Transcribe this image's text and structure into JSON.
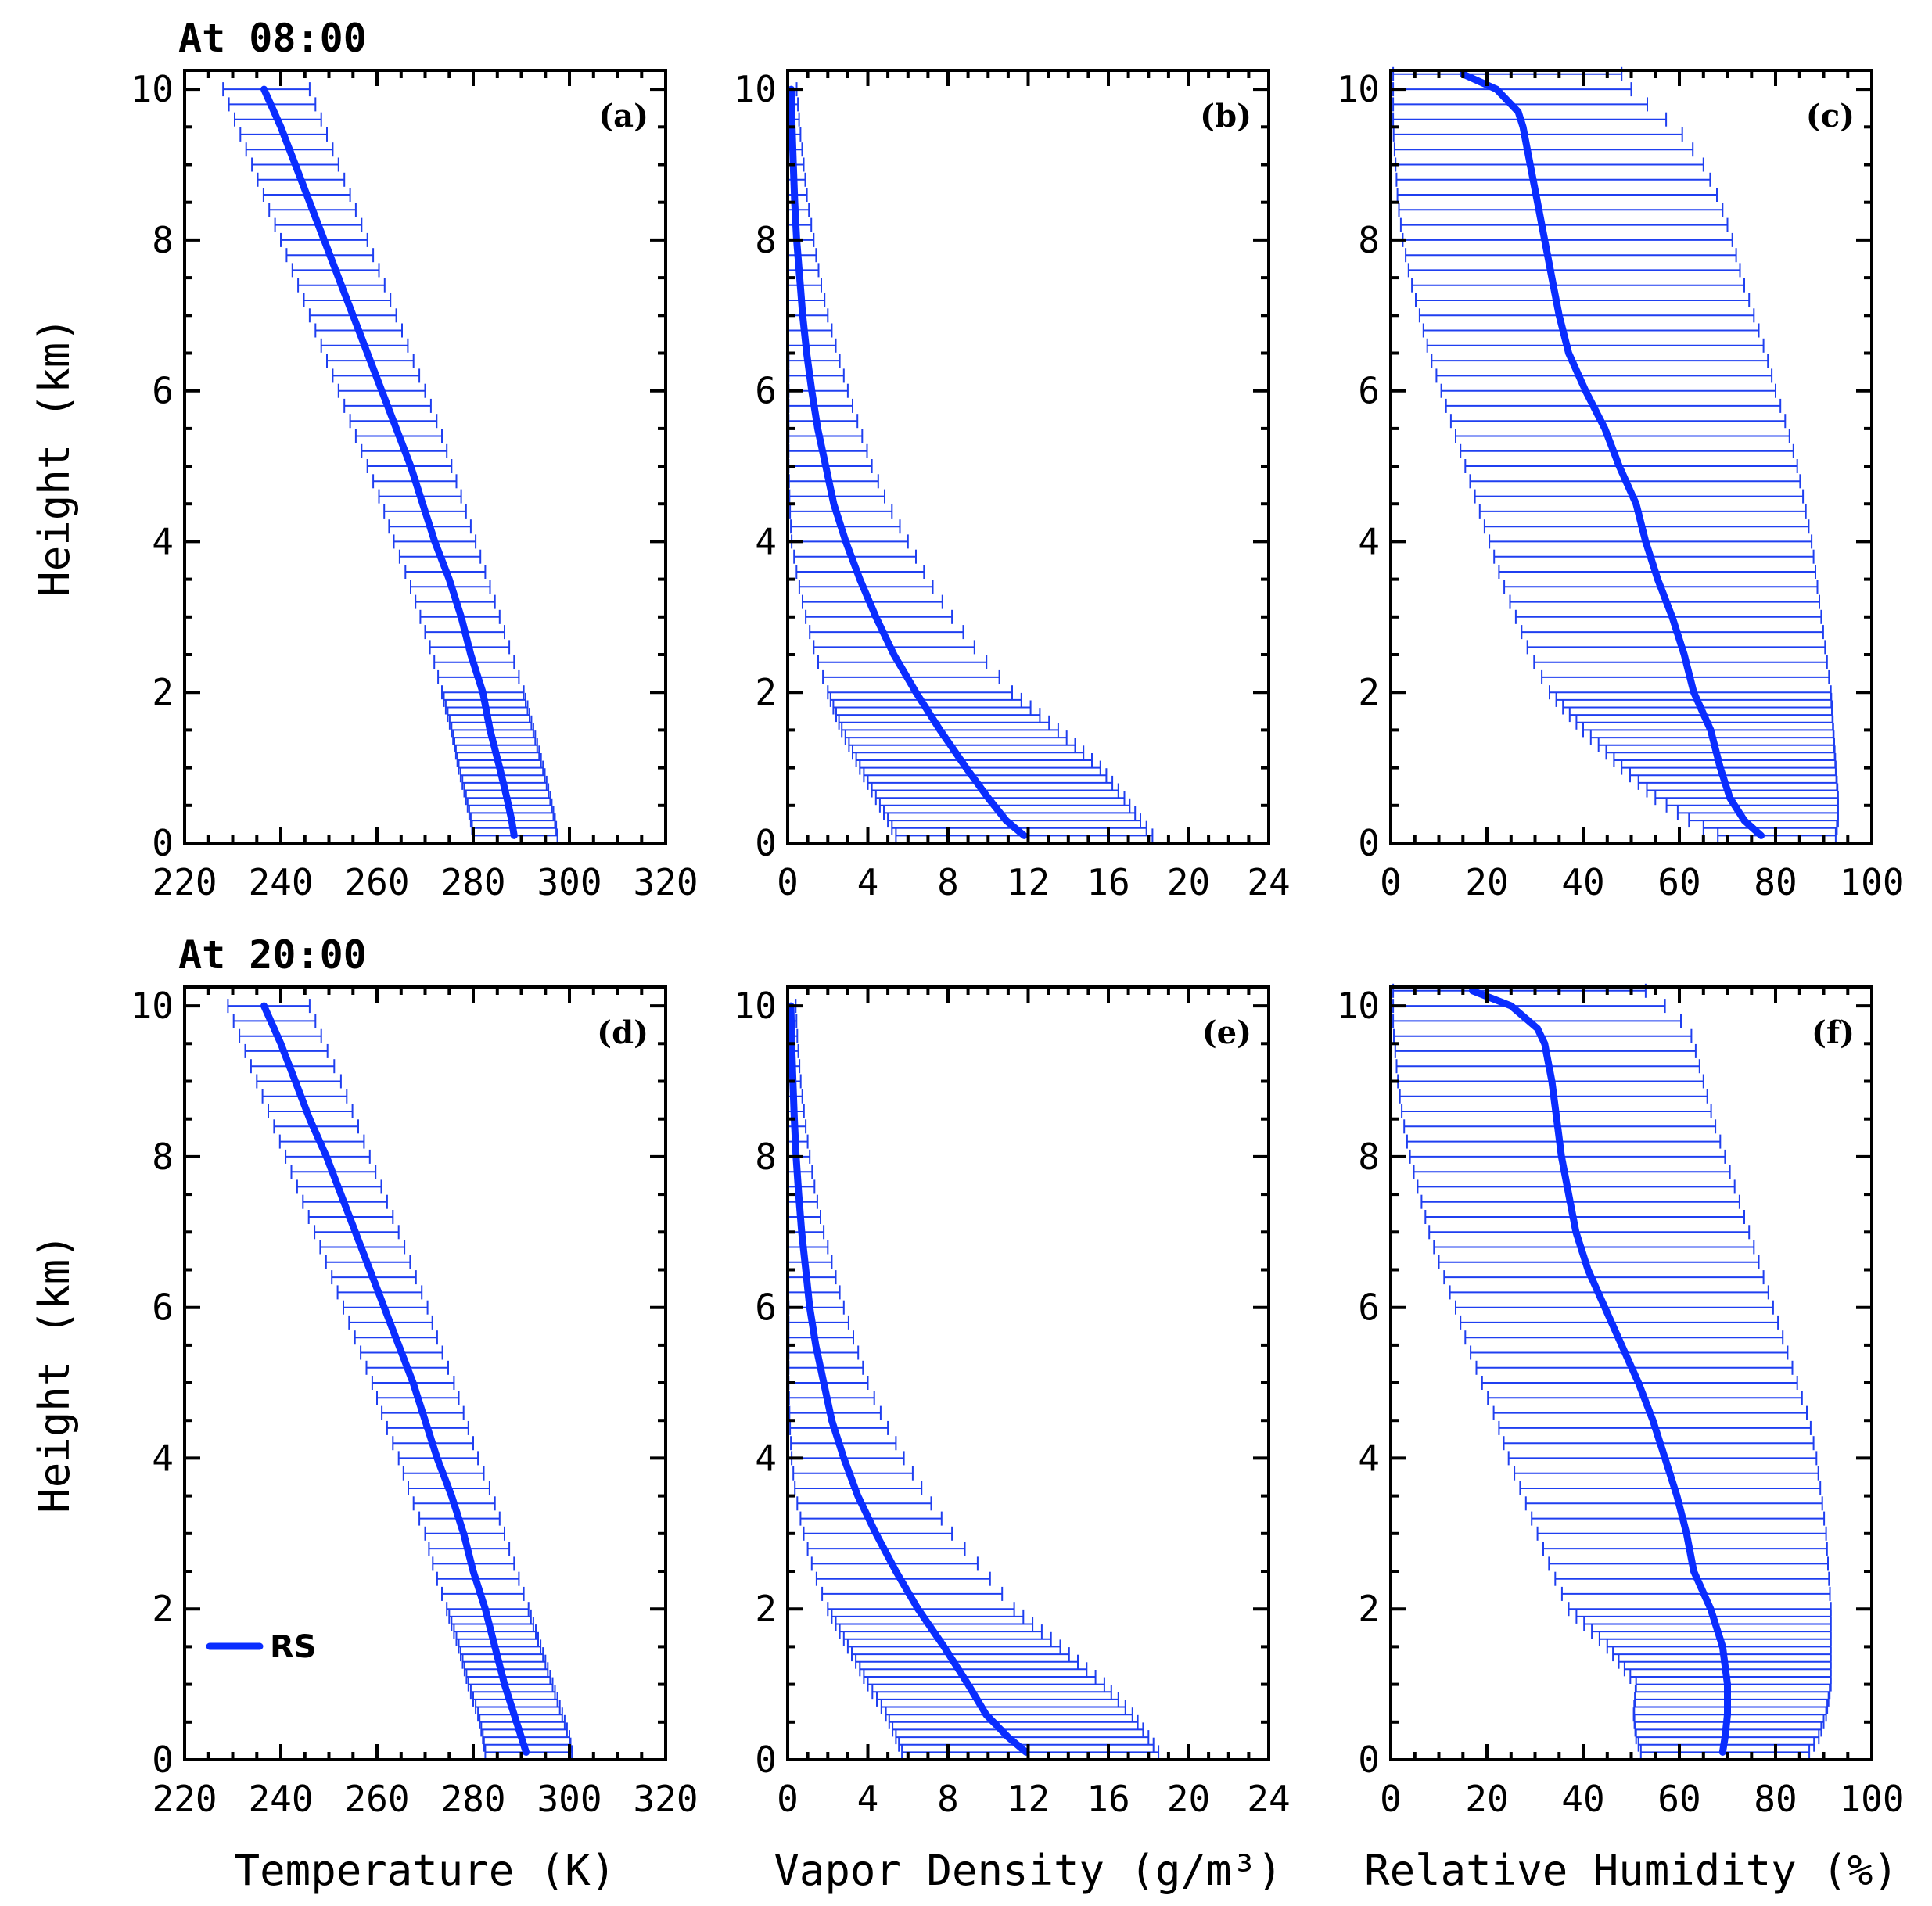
{
  "figure": {
    "row_labels": [
      "At 08:00",
      "At 20:00"
    ],
    "legend_label": "RS",
    "colors": {
      "line": "#0a2dff",
      "errorbar": "#1f3ff0",
      "axes": "#000000"
    }
  },
  "chart_data": [
    {
      "id": "a",
      "panel_tag": "(a)",
      "row": 0,
      "col": 0,
      "type": "line",
      "title": "At 08:00",
      "xlabel": "",
      "ylabel": "Height (km)",
      "xlim": [
        220,
        320
      ],
      "ylim": [
        0,
        10
      ],
      "xticks": [
        220,
        240,
        260,
        280,
        300,
        320
      ],
      "yticks": [
        0,
        2,
        4,
        6,
        8,
        10
      ],
      "series": [
        {
          "name": "RS",
          "height_km": [
            0.1,
            0.3,
            0.6,
            1.0,
            1.5,
            2.0,
            2.5,
            3.0,
            3.5,
            4.0,
            4.5,
            5.0,
            5.5,
            6.0,
            6.5,
            7.0,
            7.5,
            8.0,
            8.5,
            9.0,
            9.5,
            10.0
          ],
          "mean": [
            288.5,
            288.0,
            287.0,
            285.5,
            283.5,
            282.0,
            279.5,
            277.5,
            275.0,
            272.0,
            269.5,
            267.0,
            264.0,
            261.0,
            258.0,
            255.0,
            252.0,
            249.0,
            246.0,
            243.0,
            240.0,
            236.5
          ],
          "lower": [
            280.0,
            279.5,
            278.5,
            277.0,
            275.5,
            273.5,
            271.5,
            269.0,
            266.5,
            263.5,
            261.0,
            258.0,
            255.0,
            252.0,
            249.0,
            246.0,
            243.0,
            240.0,
            237.0,
            234.0,
            231.0,
            228.0
          ],
          "upper": [
            297.5,
            297.0,
            296.0,
            294.5,
            292.5,
            290.5,
            288.0,
            285.5,
            283.0,
            280.5,
            278.0,
            275.5,
            273.0,
            270.0,
            267.0,
            264.0,
            261.0,
            258.0,
            255.0,
            252.0,
            249.0,
            246.0
          ]
        }
      ]
    },
    {
      "id": "b",
      "panel_tag": "(b)",
      "row": 0,
      "col": 1,
      "type": "line",
      "title": "",
      "xlabel": "",
      "ylabel": "",
      "xlim": [
        0,
        24
      ],
      "ylim": [
        0,
        10
      ],
      "xticks": [
        0,
        4,
        8,
        12,
        16,
        20,
        24
      ],
      "yticks": [
        0,
        2,
        4,
        6,
        8,
        10
      ],
      "series": [
        {
          "name": "RS",
          "height_km": [
            0.1,
            0.3,
            0.6,
            1.0,
            1.5,
            2.0,
            2.5,
            3.0,
            3.5,
            4.0,
            4.5,
            5.0,
            5.5,
            6.0,
            6.5,
            7.0,
            7.5,
            8.0,
            8.5,
            9.0,
            9.5,
            10.0
          ],
          "mean": [
            11.8,
            10.9,
            10.0,
            8.9,
            7.6,
            6.4,
            5.3,
            4.4,
            3.6,
            2.9,
            2.3,
            1.9,
            1.5,
            1.2,
            0.95,
            0.75,
            0.6,
            0.45,
            0.35,
            0.28,
            0.22,
            0.18
          ],
          "lower": [
            5.4,
            5.0,
            4.4,
            3.6,
            2.7,
            2.0,
            1.4,
            0.9,
            0.5,
            0.2,
            0.1,
            0.05,
            0.05,
            0.05,
            0.05,
            0.0,
            0.0,
            0.0,
            0.0,
            0.0,
            0.0,
            0.0
          ],
          "upper": [
            18.2,
            17.6,
            16.8,
            15.6,
            13.5,
            11.2,
            9.6,
            8.2,
            7.0,
            6.0,
            5.0,
            4.2,
            3.6,
            3.0,
            2.5,
            2.0,
            1.6,
            1.3,
            1.0,
            0.8,
            0.6,
            0.45
          ]
        }
      ]
    },
    {
      "id": "c",
      "panel_tag": "(c)",
      "row": 0,
      "col": 2,
      "type": "line",
      "title": "",
      "xlabel": "",
      "ylabel": "",
      "xlim": [
        0,
        100
      ],
      "ylim": [
        0,
        10
      ],
      "xticks": [
        0,
        20,
        40,
        60,
        80,
        100
      ],
      "yticks": [
        0,
        2,
        4,
        6,
        8,
        10
      ],
      "series": [
        {
          "name": "RS",
          "height_km": [
            0.1,
            0.3,
            0.6,
            1.0,
            1.5,
            2.0,
            2.5,
            3.0,
            3.5,
            4.0,
            4.5,
            5.0,
            5.5,
            6.0,
            6.5,
            7.0,
            7.5,
            8.0,
            8.5,
            9.0,
            9.5,
            9.7,
            10.0,
            10.2
          ],
          "mean": [
            77.0,
            73.5,
            70.5,
            68.5,
            66.5,
            63.0,
            61.0,
            58.5,
            55.5,
            53.0,
            51.0,
            47.5,
            44.5,
            40.5,
            37.0,
            35.0,
            33.5,
            32.0,
            30.5,
            29.0,
            27.5,
            26.5,
            22.0,
            15.0
          ],
          "lower": [
            68.0,
            62.0,
            55.0,
            48.0,
            40.0,
            33.0,
            29.0,
            26.0,
            23.0,
            20.5,
            18.0,
            15.5,
            13.0,
            10.5,
            8.0,
            6.0,
            4.0,
            2.5,
            1.5,
            1.0,
            0.5,
            0.5,
            0.5,
            0.5
          ],
          "upper": [
            92.5,
            93.0,
            93.0,
            92.5,
            92.0,
            91.5,
            90.5,
            89.5,
            88.5,
            87.5,
            86.0,
            84.5,
            82.5,
            80.0,
            78.0,
            75.5,
            73.0,
            71.0,
            68.5,
            65.0,
            59.5,
            55.0,
            50.0,
            48.0
          ]
        }
      ]
    },
    {
      "id": "d",
      "panel_tag": "(d)",
      "row": 1,
      "col": 0,
      "type": "line",
      "title": "At 20:00",
      "xlabel": "Temperature (K)",
      "ylabel": "Height (km)",
      "xlim": [
        220,
        320
      ],
      "ylim": [
        0,
        10
      ],
      "xticks": [
        220,
        240,
        260,
        280,
        300,
        320
      ],
      "yticks": [
        0,
        2,
        4,
        6,
        8,
        10
      ],
      "series": [
        {
          "name": "RS",
          "height_km": [
            0.1,
            0.3,
            0.6,
            1.0,
            1.5,
            2.0,
            2.5,
            3.0,
            3.5,
            4.0,
            4.5,
            5.0,
            5.5,
            6.0,
            6.5,
            7.0,
            7.5,
            8.0,
            8.5,
            9.0,
            9.5,
            10.0
          ],
          "mean": [
            291.0,
            290.0,
            288.5,
            286.5,
            284.5,
            282.5,
            280.0,
            278.0,
            275.5,
            272.5,
            270.0,
            267.5,
            264.5,
            261.5,
            258.5,
            255.5,
            252.5,
            249.5,
            246.0,
            243.0,
            240.0,
            236.5
          ],
          "lower": [
            282.5,
            282.0,
            281.0,
            279.0,
            277.0,
            274.5,
            272.0,
            270.0,
            267.0,
            264.5,
            261.5,
            259.0,
            256.0,
            253.0,
            250.0,
            247.0,
            244.0,
            241.0,
            238.0,
            235.0,
            232.0,
            229.0
          ],
          "upper": [
            300.5,
            300.0,
            298.5,
            296.5,
            294.0,
            291.5,
            289.0,
            286.5,
            284.0,
            281.0,
            278.5,
            276.0,
            273.0,
            270.5,
            267.5,
            264.5,
            261.5,
            258.5,
            255.5,
            252.5,
            249.0,
            246.0
          ]
        }
      ]
    },
    {
      "id": "e",
      "panel_tag": "(e)",
      "row": 1,
      "col": 1,
      "type": "line",
      "title": "",
      "xlabel": "Vapor Density (g/m³)",
      "ylabel": "",
      "xlim": [
        0,
        24
      ],
      "ylim": [
        0,
        10
      ],
      "xticks": [
        0,
        4,
        8,
        12,
        16,
        20,
        24
      ],
      "yticks": [
        0,
        2,
        4,
        6,
        8,
        10
      ],
      "series": [
        {
          "name": "RS",
          "height_km": [
            0.1,
            0.3,
            0.6,
            1.0,
            1.5,
            2.0,
            2.5,
            3.0,
            3.5,
            4.0,
            4.5,
            5.0,
            5.5,
            6.0,
            6.5,
            7.0,
            7.5,
            8.0,
            8.5,
            9.0,
            9.5,
            10.0
          ],
          "mean": [
            11.9,
            11.0,
            9.9,
            9.0,
            7.8,
            6.5,
            5.4,
            4.4,
            3.5,
            2.8,
            2.2,
            1.8,
            1.4,
            1.1,
            0.9,
            0.7,
            0.55,
            0.42,
            0.33,
            0.26,
            0.2,
            0.16
          ],
          "lower": [
            5.7,
            5.4,
            4.9,
            4.0,
            3.0,
            2.0,
            1.3,
            0.8,
            0.4,
            0.2,
            0.1,
            0.05,
            0.05,
            0.05,
            0.0,
            0.0,
            0.0,
            0.0,
            0.0,
            0.0,
            0.0,
            0.0
          ],
          "upper": [
            18.5,
            18.0,
            17.2,
            15.8,
            13.6,
            11.3,
            9.8,
            8.2,
            6.9,
            5.8,
            4.8,
            4.0,
            3.4,
            2.8,
            2.3,
            1.8,
            1.4,
            1.1,
            0.85,
            0.65,
            0.5,
            0.4
          ]
        }
      ]
    },
    {
      "id": "f",
      "panel_tag": "(f)",
      "row": 1,
      "col": 2,
      "type": "line",
      "title": "",
      "xlabel": "Relative Humidity (%)",
      "ylabel": "",
      "xlim": [
        0,
        100
      ],
      "ylim": [
        0,
        10
      ],
      "xticks": [
        0,
        20,
        40,
        60,
        80,
        100
      ],
      "yticks": [
        0,
        2,
        4,
        6,
        8,
        10
      ],
      "series": [
        {
          "name": "RS",
          "height_km": [
            0.1,
            0.3,
            0.6,
            1.0,
            1.5,
            2.0,
            2.5,
            3.0,
            3.5,
            4.0,
            4.5,
            5.0,
            5.5,
            6.0,
            6.5,
            7.0,
            7.5,
            8.0,
            8.5,
            9.0,
            9.5,
            9.7,
            10.0,
            10.2
          ],
          "mean": [
            69.0,
            69.5,
            70.0,
            70.0,
            69.0,
            66.5,
            63.0,
            61.5,
            59.5,
            57.0,
            54.5,
            51.5,
            48.0,
            44.5,
            41.0,
            38.5,
            37.0,
            35.5,
            34.5,
            33.5,
            32.0,
            30.5,
            25.0,
            17.0
          ],
          "lower": [
            52.0,
            51.0,
            50.5,
            51.0,
            45.0,
            37.0,
            33.5,
            30.5,
            27.5,
            24.5,
            22.0,
            19.0,
            16.0,
            13.5,
            10.5,
            8.0,
            6.0,
            4.0,
            2.5,
            1.5,
            0.8,
            0.5,
            0.5,
            0.5
          ],
          "upper": [
            87.0,
            89.0,
            90.5,
            91.5,
            91.5,
            91.5,
            91.0,
            90.5,
            89.5,
            88.5,
            87.0,
            84.5,
            82.0,
            79.5,
            77.0,
            74.5,
            72.0,
            69.5,
            67.0,
            65.0,
            63.0,
            62.0,
            57.0,
            53.0
          ]
        }
      ]
    }
  ]
}
